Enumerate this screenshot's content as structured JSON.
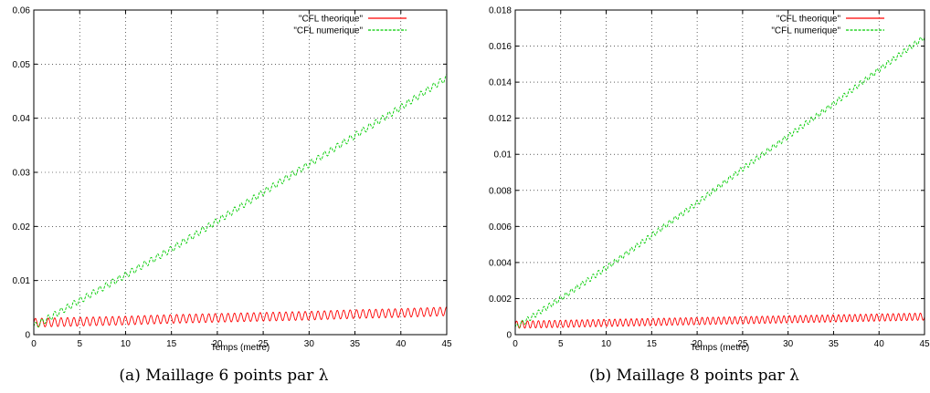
{
  "chart_data": [
    {
      "type": "line",
      "caption": "(a)  Maillage 6 points par λ",
      "xlabel": "Temps (metre)",
      "ylabel": "",
      "xlim": [
        0,
        45
      ],
      "ylim": [
        0,
        0.06
      ],
      "xticks": [
        "0",
        "5",
        "10",
        "15",
        "20",
        "25",
        "30",
        "35",
        "40",
        "45"
      ],
      "yticks": [
        "0",
        "0.01",
        "0.02",
        "0.03",
        "0.04",
        "0.05",
        "0.06"
      ],
      "grid": true,
      "legend_position": "top-right",
      "series": [
        {
          "name": "\"CFL theorique\"",
          "color": "#ff0000",
          "x": [
            0,
            5,
            10,
            15,
            20,
            25,
            30,
            35,
            40,
            45
          ],
          "y": [
            0.0022,
            0.0024,
            0.0026,
            0.0029,
            0.0031,
            0.0033,
            0.0035,
            0.0038,
            0.004,
            0.0043
          ],
          "oscillation_amplitude": 0.0008,
          "oscillation_period": 0.7
        },
        {
          "name": "\"CFL numerique\"",
          "color": "#00cc00",
          "x": [
            0,
            5,
            10,
            15,
            20,
            25,
            30,
            35,
            40,
            45
          ],
          "y": [
            0.0015,
            0.0063,
            0.011,
            0.0158,
            0.021,
            0.0263,
            0.0315,
            0.0368,
            0.042,
            0.0475
          ],
          "oscillation_amplitude": 0.0006,
          "oscillation_period": 0.7
        }
      ]
    },
    {
      "type": "line",
      "caption": "(b)  Maillage 8 points par λ",
      "xlabel": "Temps (metre)",
      "ylabel": "",
      "xlim": [
        0,
        45
      ],
      "ylim": [
        0,
        0.018
      ],
      "xticks": [
        "0",
        "5",
        "10",
        "15",
        "20",
        "25",
        "30",
        "35",
        "40",
        "45"
      ],
      "yticks": [
        "0",
        "0.002",
        "0.004",
        "0.006",
        "0.008",
        "0.01",
        "0.012",
        "0.014",
        "0.016",
        "0.018"
      ],
      "grid": true,
      "legend_position": "top-right",
      "series": [
        {
          "name": "\"CFL theorique\"",
          "color": "#ff0000",
          "x": [
            0,
            5,
            10,
            15,
            20,
            25,
            30,
            35,
            40,
            45
          ],
          "y": [
            0.00055,
            0.0006,
            0.00065,
            0.0007,
            0.00075,
            0.0008,
            0.00085,
            0.0009,
            0.00095,
            0.001
          ],
          "oscillation_amplitude": 0.0002,
          "oscillation_period": 0.6
        },
        {
          "name": "\"CFL numerique\"",
          "color": "#00cc00",
          "x": [
            0,
            5,
            10,
            15,
            20,
            25,
            30,
            35,
            40,
            45
          ],
          "y": [
            0.0004,
            0.002,
            0.0037,
            0.0055,
            0.0073,
            0.0092,
            0.011,
            0.0128,
            0.0147,
            0.0165
          ],
          "oscillation_amplitude": 0.00015,
          "oscillation_period": 0.6
        }
      ]
    }
  ]
}
